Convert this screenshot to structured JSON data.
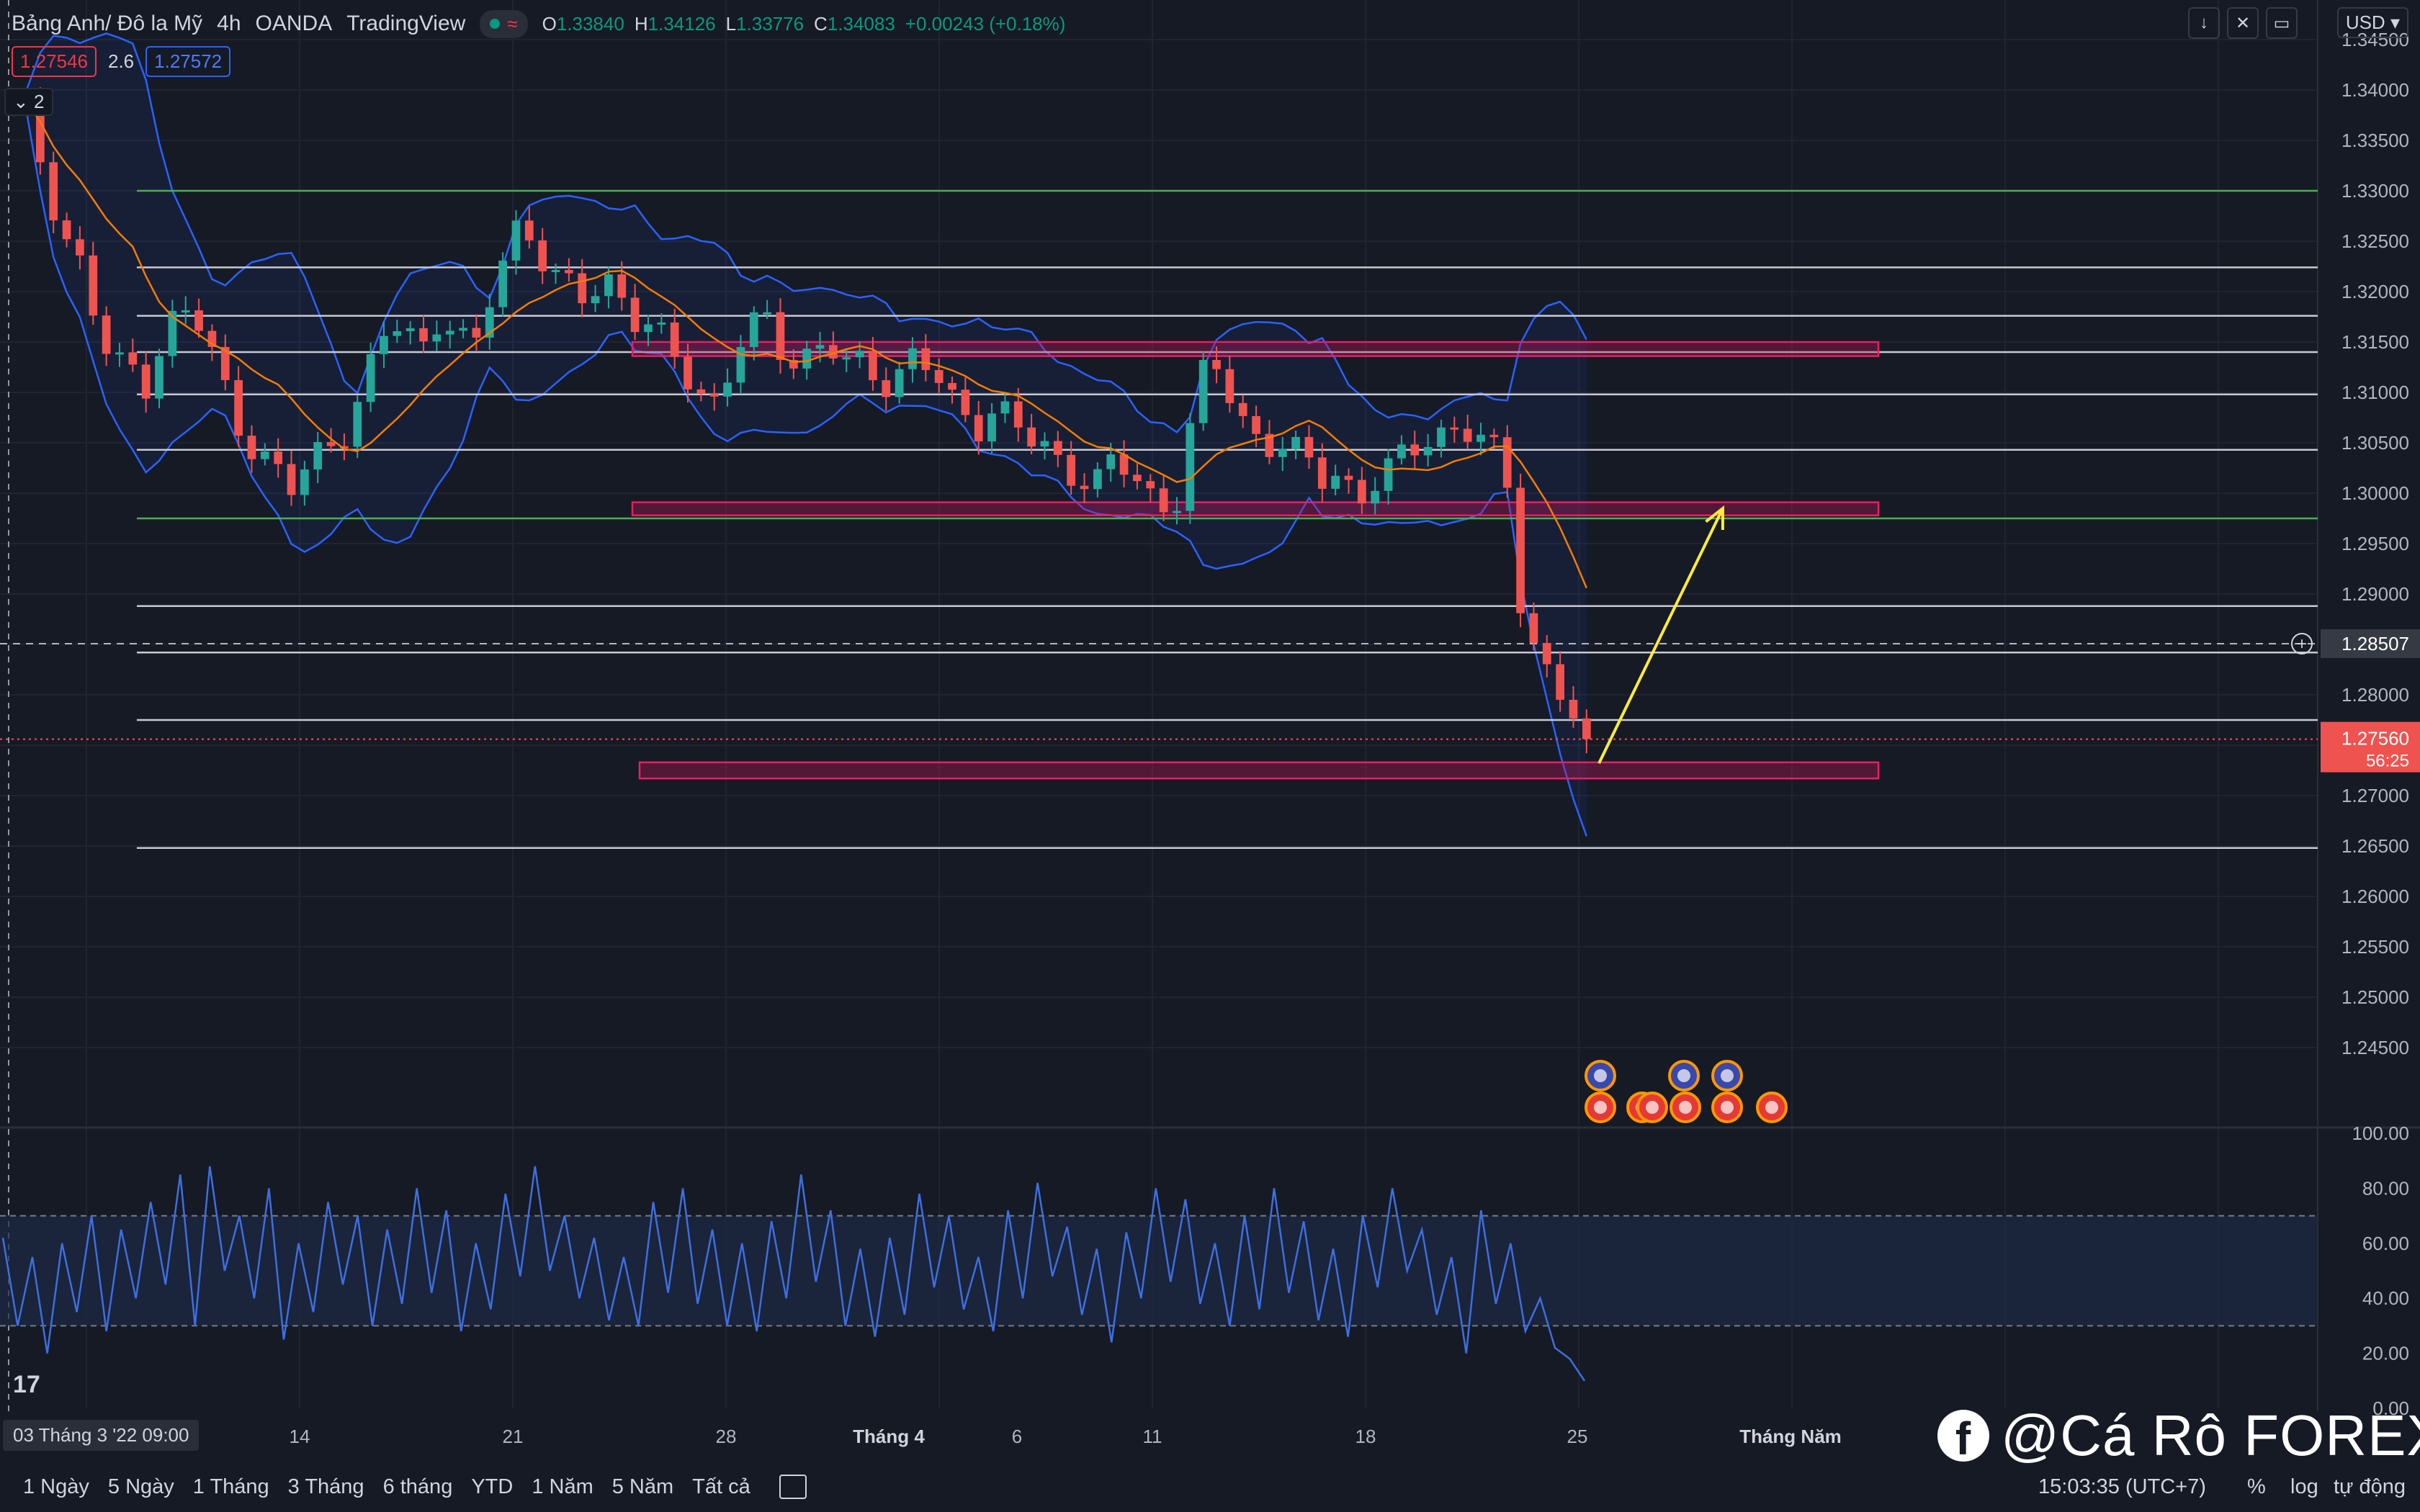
{
  "header": {
    "symbol": "Bảng Anh/ Đô la Mỹ",
    "interval": "4h",
    "broker": "OANDA",
    "source": "TradingView",
    "ohlc": {
      "o_label": "O",
      "o": "1.33840",
      "h_label": "H",
      "h": "1.34126",
      "l_label": "L",
      "l": "1.33776",
      "c_label": "C",
      "c": "1.34083",
      "chg": "+0.00243 (+0.18%)"
    },
    "bid": "1.27546",
    "spread": "2.6",
    "ask": "1.27572",
    "indicator_count": "2"
  },
  "currency": "USD",
  "crosshair_date": "03 Tháng 3 '22  09:00",
  "bottom_bar": {
    "ranges": [
      "1 Ngày",
      "5 Ngày",
      "1 Tháng",
      "3 Tháng",
      "6 tháng",
      "YTD",
      "1 Năm",
      "5 Năm",
      "Tất cả"
    ],
    "clock": "15:03:35 (UTC+7)",
    "percent": "%",
    "log": "log",
    "auto": "tự động"
  },
  "watermark": "@Cá Rô FOREX",
  "colors": {
    "bg": "#161a25",
    "up": "#26a69a",
    "down": "#ef5350",
    "bb": "#2962ff",
    "ma": "#f57c00",
    "zone": "#c2185b",
    "arrow": "#ffeb3b",
    "green_level": "#4caf50"
  },
  "chart_data": [
    {
      "type": "candlestick",
      "title": "",
      "y_ticks": [
        "1.34500",
        "1.34000",
        "1.33500",
        "1.33000",
        "1.32500",
        "1.32000",
        "1.31500",
        "1.31000",
        "1.30500",
        "1.30000",
        "1.29500",
        "1.29000",
        "1.28500",
        "1.28000",
        "1.27500",
        "1.27000",
        "1.26500",
        "1.26000",
        "1.25500",
        "1.25000",
        "1.24500"
      ],
      "ylim": [
        1.2375,
        1.3475
      ],
      "x_ticks": [
        "14",
        "21",
        "28",
        "Tháng 4",
        "6",
        "11",
        "18",
        "25",
        "Tháng Năm"
      ],
      "crosshair_price": "1.28507",
      "last_price": "1.27560",
      "countdown": "56:25",
      "horizontal_levels": [
        1.33,
        1.3224,
        1.3176,
        1.314,
        1.3098,
        1.3043,
        1.2975,
        1.2888,
        1.2842,
        1.2775,
        1.2648
      ],
      "green_levels": [
        1.33,
        1.2975
      ],
      "zones": [
        [
          1.3136,
          1.315
        ],
        [
          1.2978,
          1.2991
        ],
        [
          1.2717,
          1.2733
        ]
      ],
      "projection_arrow": {
        "from": 1.2732,
        "to": 1.2985
      },
      "path": [
        1.338,
        1.337,
        1.331,
        1.326,
        1.323,
        1.317,
        1.312,
        1.313,
        1.311,
        1.315,
        1.318,
        1.3175,
        1.314,
        1.31,
        1.306,
        1.304,
        1.302,
        1.3,
        1.303,
        1.305,
        1.306,
        1.309,
        1.313,
        1.317,
        1.316,
        1.315,
        1.318,
        1.316,
        1.313,
        1.319,
        1.324,
        1.328,
        1.324,
        1.321,
        1.32,
        1.319,
        1.322,
        1.32,
        1.317,
        1.316,
        1.314,
        1.312,
        1.31,
        1.309,
        1.314,
        1.316,
        1.317,
        1.314,
        1.313,
        1.315,
        1.314,
        1.312,
        1.313,
        1.311,
        1.312,
        1.314,
        1.312,
        1.309,
        1.308,
        1.307,
        1.309,
        1.307,
        1.305,
        1.304,
        1.303,
        1.302,
        1.301,
        1.303,
        1.302,
        1.3,
        1.299,
        1.3,
        1.308,
        1.314,
        1.31,
        1.307,
        1.306,
        1.305,
        1.304,
        1.303,
        1.301,
        1.302,
        1.3,
        1.301,
        1.302,
        1.304,
        1.305,
        1.306,
        1.307,
        1.306,
        1.304,
        1.303,
        1.289,
        1.284,
        1.282,
        1.278,
        1.2756
      ]
    },
    {
      "type": "line",
      "title": "",
      "ylim": [
        0,
        100
      ],
      "y_ticks": [
        "100.00",
        "80.00",
        "60.00",
        "40.00",
        "20.00",
        "0.00"
      ],
      "bands": [
        30,
        70
      ],
      "values": [
        62,
        30,
        55,
        20,
        60,
        35,
        70,
        28,
        65,
        40,
        75,
        45,
        85,
        30,
        88,
        50,
        70,
        40,
        80,
        25,
        60,
        35,
        75,
        45,
        70,
        30,
        65,
        38,
        80,
        42,
        72,
        28,
        60,
        36,
        78,
        48,
        88,
        50,
        70,
        40,
        62,
        32,
        55,
        30,
        75,
        42,
        80,
        38,
        65,
        30,
        60,
        28,
        68,
        40,
        85,
        46,
        72,
        30,
        58,
        26,
        62,
        34,
        78,
        44,
        70,
        36,
        55,
        28,
        72,
        40,
        82,
        48,
        66,
        34,
        58,
        24,
        64,
        40,
        80,
        46,
        76,
        38,
        60,
        30,
        70,
        36,
        80,
        42,
        68,
        32,
        58,
        26,
        70,
        44,
        80,
        50,
        65,
        34,
        55,
        20,
        72,
        38,
        60,
        28,
        40,
        22,
        18,
        10
      ]
    }
  ]
}
